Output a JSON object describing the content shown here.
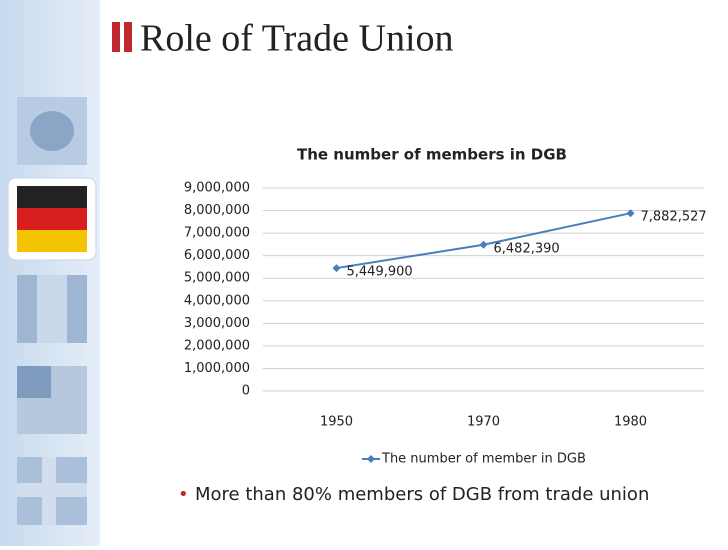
{
  "slide": {
    "title": "Role of Trade Union",
    "bullet": "More than 80% members of DGB from trade union"
  },
  "chart_data": {
    "type": "line",
    "title": "The number of members in DGB",
    "categories": [
      "1950",
      "1970",
      "1980"
    ],
    "series": [
      {
        "name": "The number of member in DGB",
        "color": "#4a7ebb",
        "values": [
          5449900,
          6482390,
          7882527
        ],
        "value_labels": [
          "5,449,900",
          "6,482,390",
          "7,882,527"
        ]
      }
    ],
    "ylim": [
      0,
      9000000
    ],
    "yticks": [
      0,
      {
        "value": 1000000,
        "label": "1,000,000"
      },
      {
        "value": 2000000,
        "label": "2,000,000"
      },
      {
        "value": 3000000,
        "label": "3,000,000"
      },
      {
        "value": 4000000,
        "label": "4,000,000"
      },
      {
        "value": 5000000,
        "label": "5,000,000"
      },
      {
        "value": 6000000,
        "label": "6,000,000"
      },
      {
        "value": 7000000,
        "label": "7,000,000"
      },
      {
        "value": 8000000,
        "label": "8,000,000"
      },
      {
        "value": 9000000,
        "label": "9,000,000"
      }
    ],
    "grid": true,
    "legend": "bottom"
  }
}
